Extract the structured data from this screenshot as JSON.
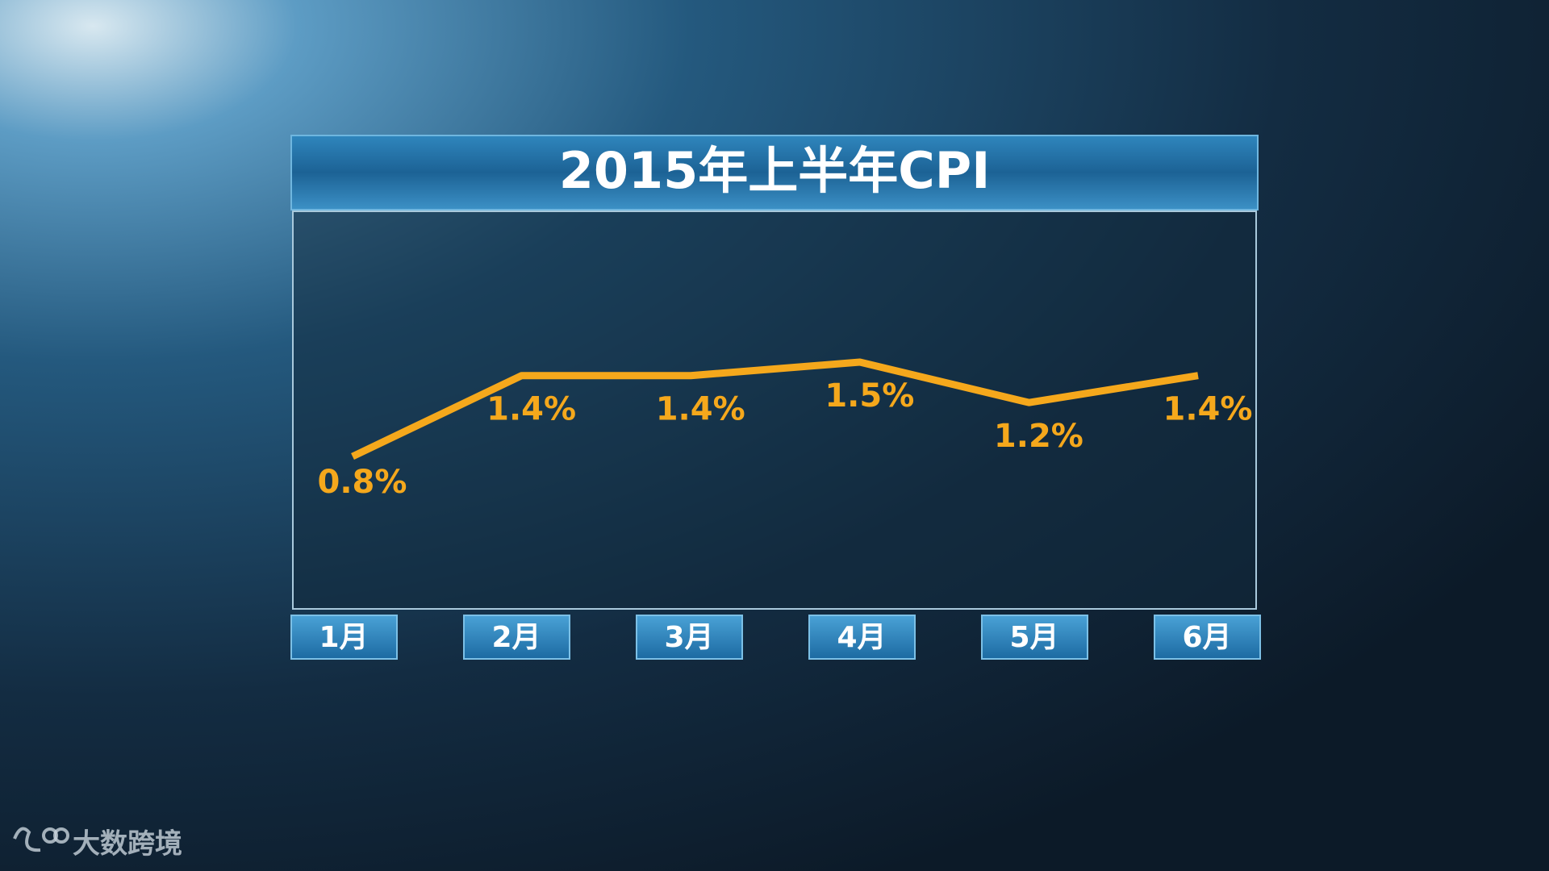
{
  "chart_data": {
    "type": "line",
    "title": "2015年上半年CPI",
    "categories": [
      "1月",
      "2月",
      "3月",
      "4月",
      "5月",
      "6月"
    ],
    "values": [
      0.8,
      1.4,
      1.4,
      1.5,
      1.2,
      1.4
    ],
    "value_labels": [
      "0.8%",
      "1.4%",
      "1.4%",
      "1.5%",
      "1.2%",
      "1.4%"
    ],
    "color": "#f5a81c"
  },
  "watermark": "大数跨境"
}
